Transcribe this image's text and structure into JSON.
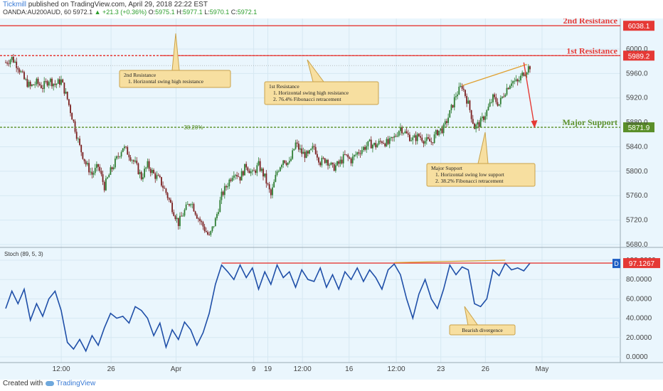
{
  "header": {
    "publisher": "Tickmill",
    "published_text": "published on TradingView.com, April 29, 2018 22:22 EST",
    "symbol": "OANDA:AU200AUD, 60",
    "last": "5972.1",
    "change": "▲ +21.3 (+0.36%)",
    "o_label": "O:",
    "o": "5975.1",
    "h_label": "H:",
    "h": "5977.1",
    "l_label": "L:",
    "l": "5970.1",
    "c_label": "C:",
    "c": "5972.1"
  },
  "footer": {
    "created_with": "Created with",
    "brand": "TradingView"
  },
  "colors": {
    "background": "#eaf6fd",
    "up_candle": "#2e7d32",
    "down_candle": "#7a1f1f",
    "resistance": "#e53935",
    "support": "#5a8f29",
    "annotation_box": "#f7dfa0",
    "annotation_border": "#c9a24a",
    "stoch_line": "#1f4fa8",
    "divergence": "#e0a030"
  },
  "chart_data": [
    {
      "type": "candlestick",
      "ylim": [
        5680,
        6050
      ],
      "y_ticks": [
        "6000.0",
        "5960.0",
        "5920.0",
        "5880.0",
        "5840.0",
        "5800.0",
        "5760.0",
        "5720.0",
        "5680.0"
      ],
      "x_ticks": [
        "19",
        "12:00",
        "26",
        "Apr",
        "9",
        "12:00",
        "16",
        "12:00",
        "23",
        "26",
        "May"
      ],
      "close_path": [
        [
          0,
          5978
        ],
        [
          4,
          5985
        ],
        [
          8,
          5972
        ],
        [
          12,
          5950
        ],
        [
          16,
          5938
        ],
        [
          20,
          5945
        ],
        [
          24,
          5938
        ],
        [
          28,
          5950
        ],
        [
          32,
          5942
        ],
        [
          36,
          5948
        ],
        [
          40,
          5918
        ],
        [
          44,
          5880
        ],
        [
          48,
          5840
        ],
        [
          52,
          5812
        ],
        [
          56,
          5795
        ],
        [
          60,
          5808
        ],
        [
          64,
          5775
        ],
        [
          68,
          5800
        ],
        [
          72,
          5820
        ],
        [
          76,
          5840
        ],
        [
          80,
          5828
        ],
        [
          84,
          5812
        ],
        [
          88,
          5790
        ],
        [
          92,
          5810
        ],
        [
          96,
          5795
        ],
        [
          100,
          5785
        ],
        [
          104,
          5765
        ],
        [
          108,
          5740
        ],
        [
          112,
          5715
        ],
        [
          116,
          5735
        ],
        [
          120,
          5752
        ],
        [
          124,
          5728
        ],
        [
          128,
          5710
        ],
        [
          132,
          5692
        ],
        [
          136,
          5720
        ],
        [
          140,
          5760
        ],
        [
          144,
          5780
        ],
        [
          148,
          5800
        ],
        [
          152,
          5790
        ],
        [
          156,
          5810
        ],
        [
          160,
          5795
        ],
        [
          164,
          5810
        ],
        [
          168,
          5790
        ],
        [
          172,
          5760
        ],
        [
          176,
          5800
        ],
        [
          180,
          5820
        ],
        [
          184,
          5812
        ],
        [
          188,
          5845
        ],
        [
          192,
          5830
        ],
        [
          196,
          5825
        ],
        [
          200,
          5840
        ],
        [
          204,
          5815
        ],
        [
          208,
          5820
        ],
        [
          212,
          5805
        ],
        [
          216,
          5812
        ],
        [
          220,
          5825
        ],
        [
          224,
          5818
        ],
        [
          228,
          5830
        ],
        [
          232,
          5838
        ],
        [
          236,
          5845
        ],
        [
          240,
          5842
        ],
        [
          244,
          5850
        ],
        [
          248,
          5845
        ],
        [
          252,
          5855
        ],
        [
          256,
          5872
        ],
        [
          260,
          5860
        ],
        [
          264,
          5852
        ],
        [
          268,
          5858
        ],
        [
          272,
          5850
        ],
        [
          276,
          5848
        ],
        [
          280,
          5865
        ],
        [
          284,
          5870
        ],
        [
          288,
          5895
        ],
        [
          292,
          5925
        ],
        [
          296,
          5940
        ],
        [
          300,
          5910
        ],
        [
          304,
          5872
        ],
        [
          308,
          5880
        ],
        [
          312,
          5898
        ],
        [
          316,
          5920
        ],
        [
          320,
          5910
        ],
        [
          324,
          5932
        ],
        [
          328,
          5948
        ],
        [
          332,
          5945
        ],
        [
          336,
          5962
        ],
        [
          340,
          5972
        ]
      ],
      "x_range": [
        0,
        340
      ],
      "levels": [
        {
          "label": "2nd Resistance",
          "value": "6038.1",
          "y": 6038.1
        },
        {
          "label": "1st Resistance",
          "value": "5989.2",
          "y": 5989.2
        },
        {
          "label": "Major Support",
          "value": "5871.9",
          "y": 5871.9
        }
      ],
      "fib": {
        "label": "38.20%",
        "y": 5871.9
      },
      "prev_high_dotted": 5973,
      "forecast": {
        "from": [
          336,
          5978
        ],
        "to": [
          343,
          5871.9
        ]
      },
      "annotations": [
        {
          "title": "2nd Resistance",
          "lines": [
            "1. Horizontal swing high resistance"
          ]
        },
        {
          "title": "1st Resistance",
          "lines": [
            "1. Horizontal swing high resistance",
            "2. 76.4% Fibonacci retracement"
          ]
        },
        {
          "title": "Major Support",
          "lines": [
            "1. Horizontal swing low support",
            "2. 38.2% Fibonacci retracement"
          ]
        }
      ]
    },
    {
      "type": "line",
      "title": "Stoch (89, 5, 3)",
      "ylim": [
        0,
        100
      ],
      "y_ticks": [
        "100.0000",
        "80.0000",
        "60.0000",
        "40.0000",
        "20.0000",
        "0.0000"
      ],
      "current_value": "97.1267",
      "marker": "D",
      "series": [
        {
          "values": [
            [
              0,
              50
            ],
            [
              4,
              68
            ],
            [
              8,
              55
            ],
            [
              12,
              70
            ],
            [
              16,
              38
            ],
            [
              20,
              55
            ],
            [
              24,
              42
            ],
            [
              28,
              60
            ],
            [
              32,
              68
            ],
            [
              36,
              48
            ],
            [
              40,
              15
            ],
            [
              44,
              8
            ],
            [
              48,
              18
            ],
            [
              52,
              6
            ],
            [
              56,
              22
            ],
            [
              60,
              12
            ],
            [
              64,
              30
            ],
            [
              68,
              45
            ],
            [
              72,
              40
            ],
            [
              76,
              42
            ],
            [
              80,
              35
            ],
            [
              84,
              52
            ],
            [
              88,
              48
            ],
            [
              92,
              40
            ],
            [
              96,
              22
            ],
            [
              100,
              35
            ],
            [
              104,
              10
            ],
            [
              108,
              28
            ],
            [
              112,
              18
            ],
            [
              116,
              36
            ],
            [
              120,
              28
            ],
            [
              124,
              12
            ],
            [
              128,
              25
            ],
            [
              132,
              45
            ],
            [
              136,
              75
            ],
            [
              140,
              95
            ],
            [
              144,
              88
            ],
            [
              148,
              80
            ],
            [
              152,
              95
            ],
            [
              156,
              82
            ],
            [
              160,
              92
            ],
            [
              164,
              70
            ],
            [
              168,
              88
            ],
            [
              172,
              75
            ],
            [
              176,
              95
            ],
            [
              180,
              82
            ],
            [
              184,
              88
            ],
            [
              188,
              72
            ],
            [
              192,
              90
            ],
            [
              196,
              80
            ],
            [
              200,
              78
            ],
            [
              204,
              92
            ],
            [
              208,
              72
            ],
            [
              212,
              85
            ],
            [
              216,
              70
            ],
            [
              220,
              88
            ],
            [
              224,
              80
            ],
            [
              228,
              92
            ],
            [
              232,
              78
            ],
            [
              236,
              90
            ],
            [
              240,
              82
            ],
            [
              244,
              70
            ],
            [
              248,
              90
            ],
            [
              252,
              96
            ],
            [
              256,
              85
            ],
            [
              260,
              60
            ],
            [
              264,
              40
            ],
            [
              268,
              65
            ],
            [
              272,
              80
            ],
            [
              276,
              60
            ],
            [
              280,
              50
            ],
            [
              284,
              70
            ],
            [
              288,
              95
            ],
            [
              292,
              85
            ],
            [
              296,
              93
            ],
            [
              300,
              90
            ],
            [
              304,
              55
            ],
            [
              308,
              52
            ],
            [
              312,
              60
            ],
            [
              316,
              90
            ],
            [
              320,
              84
            ],
            [
              324,
              97
            ],
            [
              328,
              90
            ],
            [
              332,
              92
            ],
            [
              336,
              89
            ],
            [
              340,
              97
            ]
          ]
        }
      ],
      "divergence_label": "Bearish divergence"
    }
  ]
}
